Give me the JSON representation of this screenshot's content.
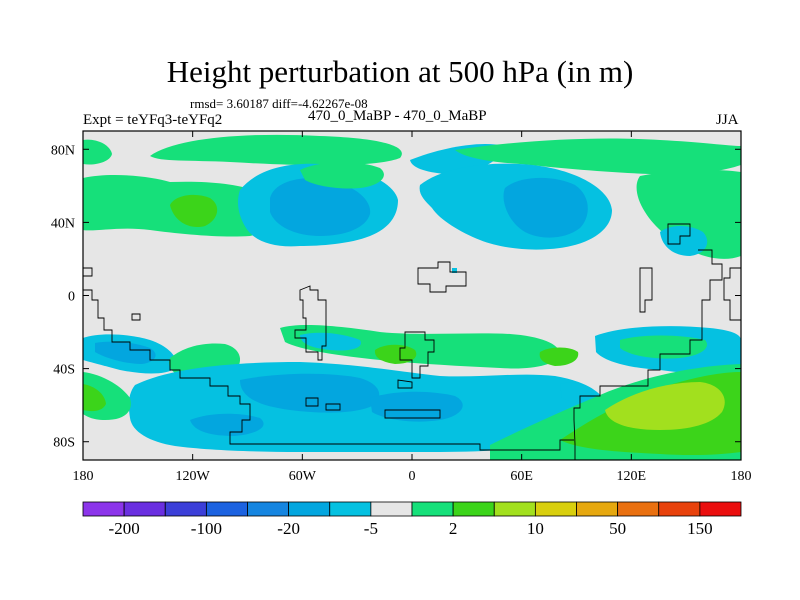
{
  "title": "Height perturbation at 500 hPa (in m)",
  "stats_line": "rmsd= 3.60187 diff=-4.62267e-08",
  "experiment": "Expt = teYFq3-teYFq2",
  "subtitle": "470_0_MaBP - 470_0_MaBP",
  "season": "JJA",
  "axes": {
    "y_ticks": [
      {
        "label": "80N",
        "lat": 80
      },
      {
        "label": "40N",
        "lat": 40
      },
      {
        "label": "0",
        "lat": 0
      },
      {
        "label": "40S",
        "lat": -40
      },
      {
        "label": "80S",
        "lat": -80
      }
    ],
    "x_ticks": [
      {
        "label": "180",
        "lon": -180
      },
      {
        "label": "120W",
        "lon": -120
      },
      {
        "label": "60W",
        "lon": -60
      },
      {
        "label": "0",
        "lon": 0
      },
      {
        "label": "60E",
        "lon": 60
      },
      {
        "label": "120E",
        "lon": 120
      },
      {
        "label": "180",
        "lon": 180
      }
    ],
    "lon_range": [
      -180,
      180
    ],
    "lat_range": [
      -90,
      90
    ]
  },
  "colorbar": {
    "colors": [
      "#8c35ea",
      "#6a2fe0",
      "#3c3fd8",
      "#1c62e0",
      "#1585e0",
      "#03a6df",
      "#05c1e1",
      "#e6e6e6",
      "#16e07a",
      "#3cd41a",
      "#a2e01e",
      "#d9cf0e",
      "#e6a80f",
      "#e97010",
      "#e8420c",
      "#ea0e0e"
    ],
    "labels": [
      {
        "text": "-200",
        "boundary": 1
      },
      {
        "text": "-100",
        "boundary": 3
      },
      {
        "text": "-20",
        "boundary": 5
      },
      {
        "text": "-5",
        "boundary": 7
      },
      {
        "text": "2",
        "boundary": 9
      },
      {
        "text": "10",
        "boundary": 11
      },
      {
        "text": "50",
        "boundary": 13
      },
      {
        "text": "150",
        "boundary": 15
      }
    ]
  },
  "field_colors": {
    "background": "#e6e6e6",
    "cyan": "#05c1e1",
    "blue": "#03a6df",
    "green": "#16e07a",
    "lime": "#3cd41a",
    "yellowgreen": "#a2e01e"
  }
}
